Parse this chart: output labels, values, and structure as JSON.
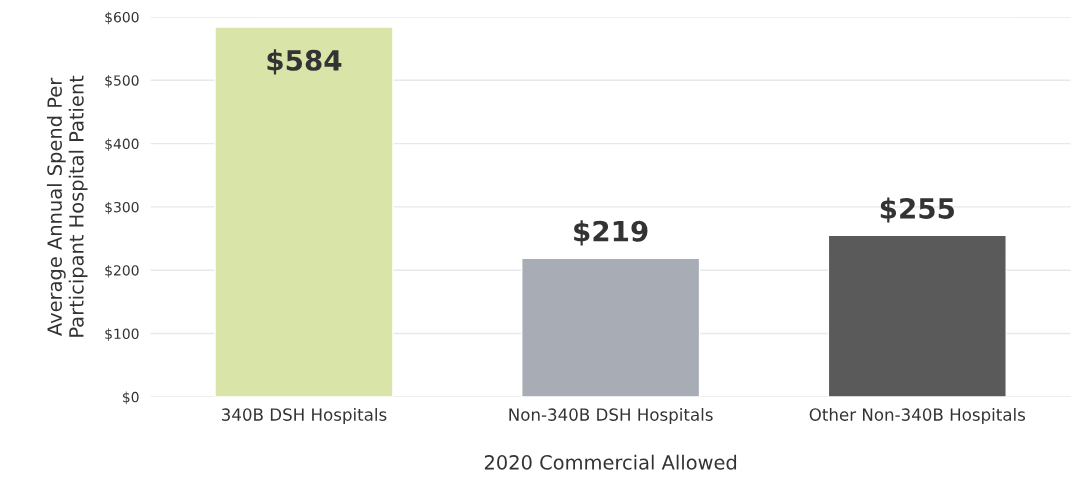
{
  "chart_data": {
    "type": "bar",
    "xlabel": "2020 Commercial Allowed",
    "ylabel": "Average Annual Spend Per\nParticipant Hospital Patient",
    "categories": [
      "340B DSH Hospitals",
      "Non-340B DSH Hospitals",
      "Other Non-340B Hospitals"
    ],
    "values": [
      584,
      219,
      255
    ],
    "colors": [
      "#d9e4a8",
      "#a8adb5",
      "#5a5a5a"
    ],
    "value_labels": [
      "$584",
      "$219",
      "$255"
    ],
    "ylim": [
      0,
      600
    ],
    "yticks": [
      {
        "value": 0,
        "label": "$0"
      },
      {
        "value": 100,
        "label": "$100"
      },
      {
        "value": 200,
        "label": "$200"
      },
      {
        "value": 300,
        "label": "$300"
      },
      {
        "value": 400,
        "label": "$400"
      },
      {
        "value": 500,
        "label": "$500"
      },
      {
        "value": 600,
        "label": "$600"
      }
    ],
    "grid": "y",
    "legend": false
  }
}
